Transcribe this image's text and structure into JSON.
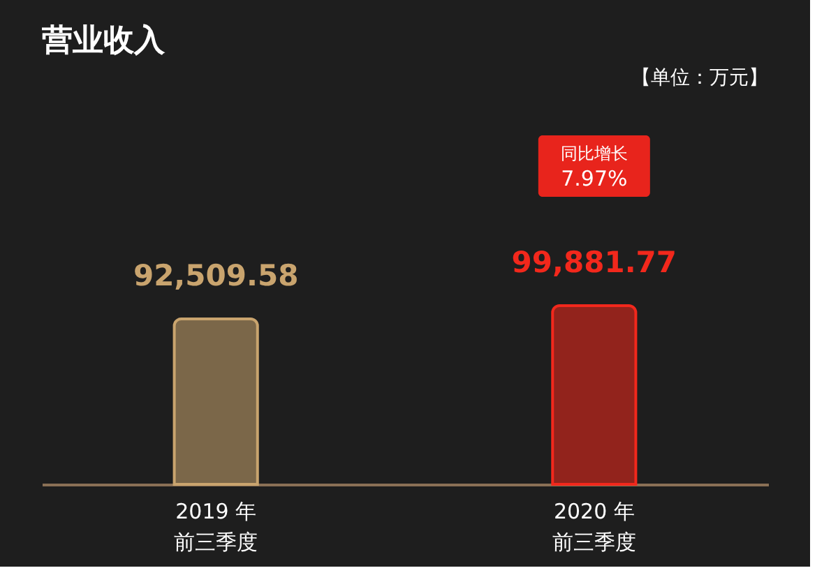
{
  "chart_data": {
    "type": "bar",
    "title": "营业收入",
    "categories": [
      "2019 年前三季度",
      "2020 年前三季度"
    ],
    "values": [
      92509.58,
      99881.77
    ],
    "colors": [
      "#c9a46e",
      "#f2281c"
    ],
    "value_labels": [
      "92,509.58",
      "99,881.77"
    ],
    "tick_labels": "x",
    "annotations": [
      "【单位：万元】",
      "同比增长7.97%"
    ]
  }
}
